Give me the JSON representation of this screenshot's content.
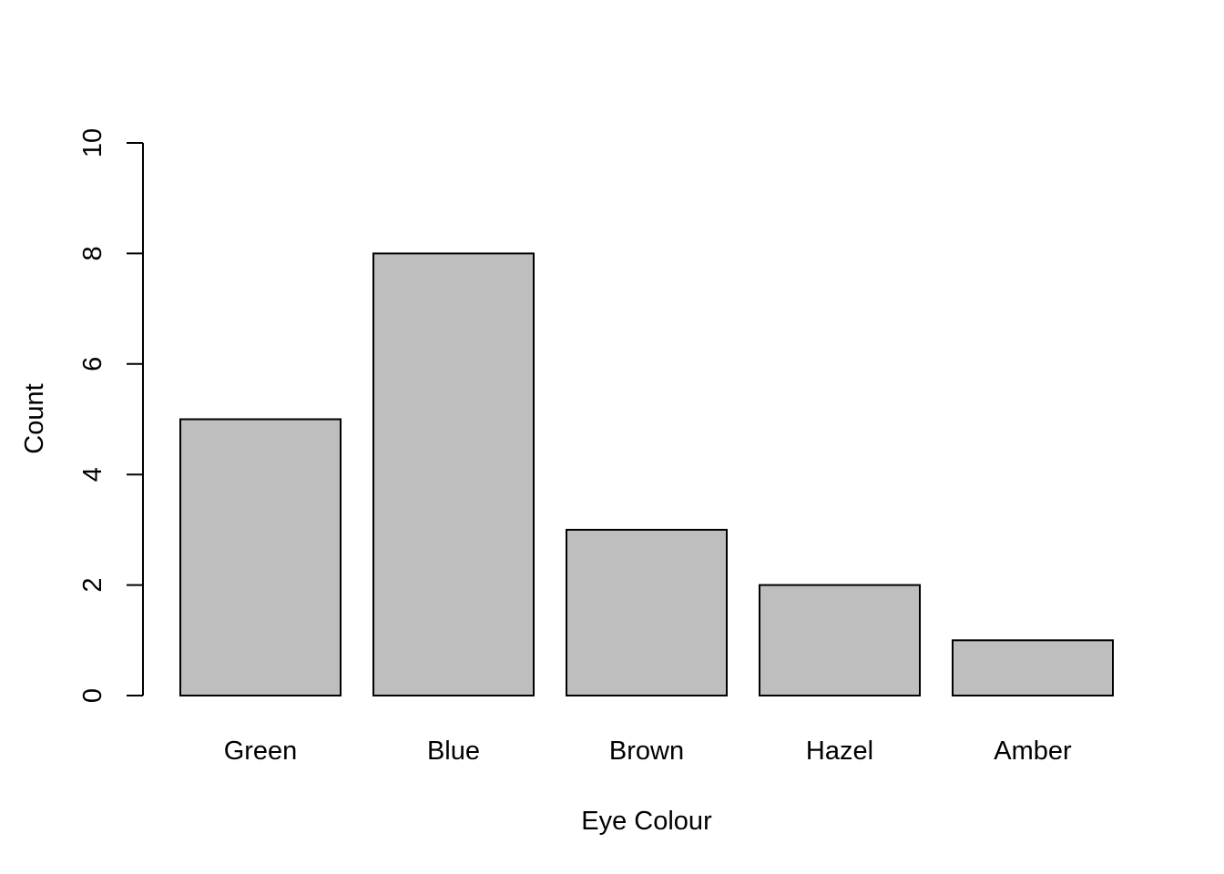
{
  "chart_data": {
    "type": "bar",
    "categories": [
      "Green",
      "Blue",
      "Brown",
      "Hazel",
      "Amber"
    ],
    "values": [
      5,
      8,
      3,
      2,
      1
    ],
    "xlabel": "Eye Colour",
    "ylabel": "Count",
    "ylim": [
      0,
      10
    ],
    "yticks": [
      "0",
      "2",
      "4",
      "6",
      "8",
      "10"
    ],
    "grid": false,
    "bar_fill": "#bebebe",
    "bar_stroke": "#000000"
  }
}
